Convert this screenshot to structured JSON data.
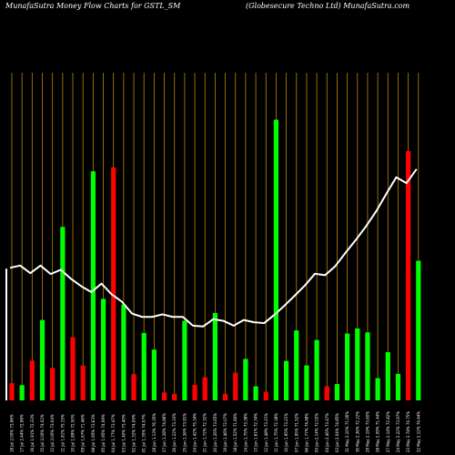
{
  "title_left": "MunafaSutra  Money  Flow  Charts for  GSTL_SM",
  "title_right": "(Globesecure    Techno   Ltd)  MunafaSutra.com",
  "colors": {
    "up": "#00ff00",
    "down": "#ff0000",
    "line": "#ffffff",
    "grid": "#b8860b",
    "background": "#000000"
  },
  "chart_data": {
    "type": "bar",
    "title": "",
    "xlabel": "",
    "ylabel": "",
    "ylim": [
      0,
      100
    ],
    "categories": [
      "18 Jul 2.00% 73.96%",
      "17 Jul 2.44% 72.98%",
      "16 Jul 1.91% 72.33%",
      "15 Jul 2.00% 74.02%",
      "12 Jul 2.00% 73.04%",
      "11 Jul 1.81% 75.15%",
      "10 Jul 1.89% 72.50%",
      "09 Jul 1.67% 71.46%",
      "08 Jul 1.95% 73.63%",
      "05 Jul 1.95% 74.09%",
      "04 Jul 1.77% 73.47%",
      "03 Jul 1.40% 73.40%",
      "02 Jul 1.32% 74.09%",
      "01 Jul 1.35% 74.07%",
      "28 Jun 1.13% 76.35%",
      "27 Jun 1.28% 74.86%",
      "26 Jun 1.22% 73.33%",
      "25 Jun 1.36% 73.91%",
      "24 Jun 1.42% 75.34%",
      "21 Jun 1.72% 72.32%",
      "20 Jun 1.26% 73.65%",
      "19 Jun 1.46% 72.07%",
      "18 Jun 1.52% 71.84%",
      "14 Jun 1.75% 73.38%",
      "13 Jun 1.61% 72.34%",
      "12 Jun 1.48% 73.21%",
      "11 Jun 1.75% 72.38%",
      "10 Jun 1.95% 73.21%",
      "07 Jun 1.95% 71.52%",
      "06 Jun 1.77% 74.48%",
      "05 Jun 2.14% 72.02%",
      "04 Jun 2.46% 73.47%",
      "03 Jun 2.04% 74.85%",
      "31 May 2.10% 71.06%",
      "30 May 2.36% 72.22%",
      "29 May 2.19% 73.60%",
      "28 May 2.09% 71.44%",
      "27 May 2.14% 72.82%",
      "24 May 2.22% 73.97%",
      "23 May 2.74% 74.75%",
      "22 May 2.12% 74.44%"
    ],
    "bar_values": [
      6.1,
      5.4,
      14.1,
      28.5,
      11.5,
      61.5,
      22.4,
      12.3,
      81.2,
      36.0,
      82.6,
      34.0,
      9.3,
      23.9,
      18.0,
      2.8,
      2.3,
      28.2,
      5.5,
      8.2,
      31.0,
      2.3,
      9.8,
      14.7,
      5.0,
      3.0,
      99.5,
      14.0,
      24.8,
      12.4,
      21.4,
      5.0,
      5.8,
      23.7,
      25.5,
      24.1,
      7.9,
      17.1,
      9.4,
      88.4,
      49.5
    ],
    "bar_direction": [
      "down",
      "up",
      "down",
      "up",
      "down",
      "up",
      "down",
      "down",
      "up",
      "up",
      "down",
      "up",
      "down",
      "up",
      "up",
      "down",
      "down",
      "up",
      "down",
      "down",
      "up",
      "down",
      "down",
      "up",
      "up",
      "down",
      "up",
      "up",
      "up",
      "up",
      "up",
      "down",
      "up",
      "up",
      "up",
      "up",
      "up",
      "up",
      "up",
      "down",
      "up"
    ],
    "line_values": [
      47.0,
      47.8,
      45.1,
      47.8,
      44.8,
      46.3,
      43.1,
      40.5,
      38.4,
      41.4,
      37.6,
      35.0,
      30.8,
      29.6,
      29.6,
      30.5,
      29.6,
      29.6,
      26.5,
      26.2,
      28.8,
      28.2,
      26.5,
      28.5,
      27.7,
      27.4,
      30.3,
      33.6,
      37.1,
      40.7,
      44.9,
      44.4,
      47.6,
      52.3,
      56.8,
      61.6,
      66.9,
      73.1,
      79.1,
      77.0,
      82.0
    ]
  }
}
